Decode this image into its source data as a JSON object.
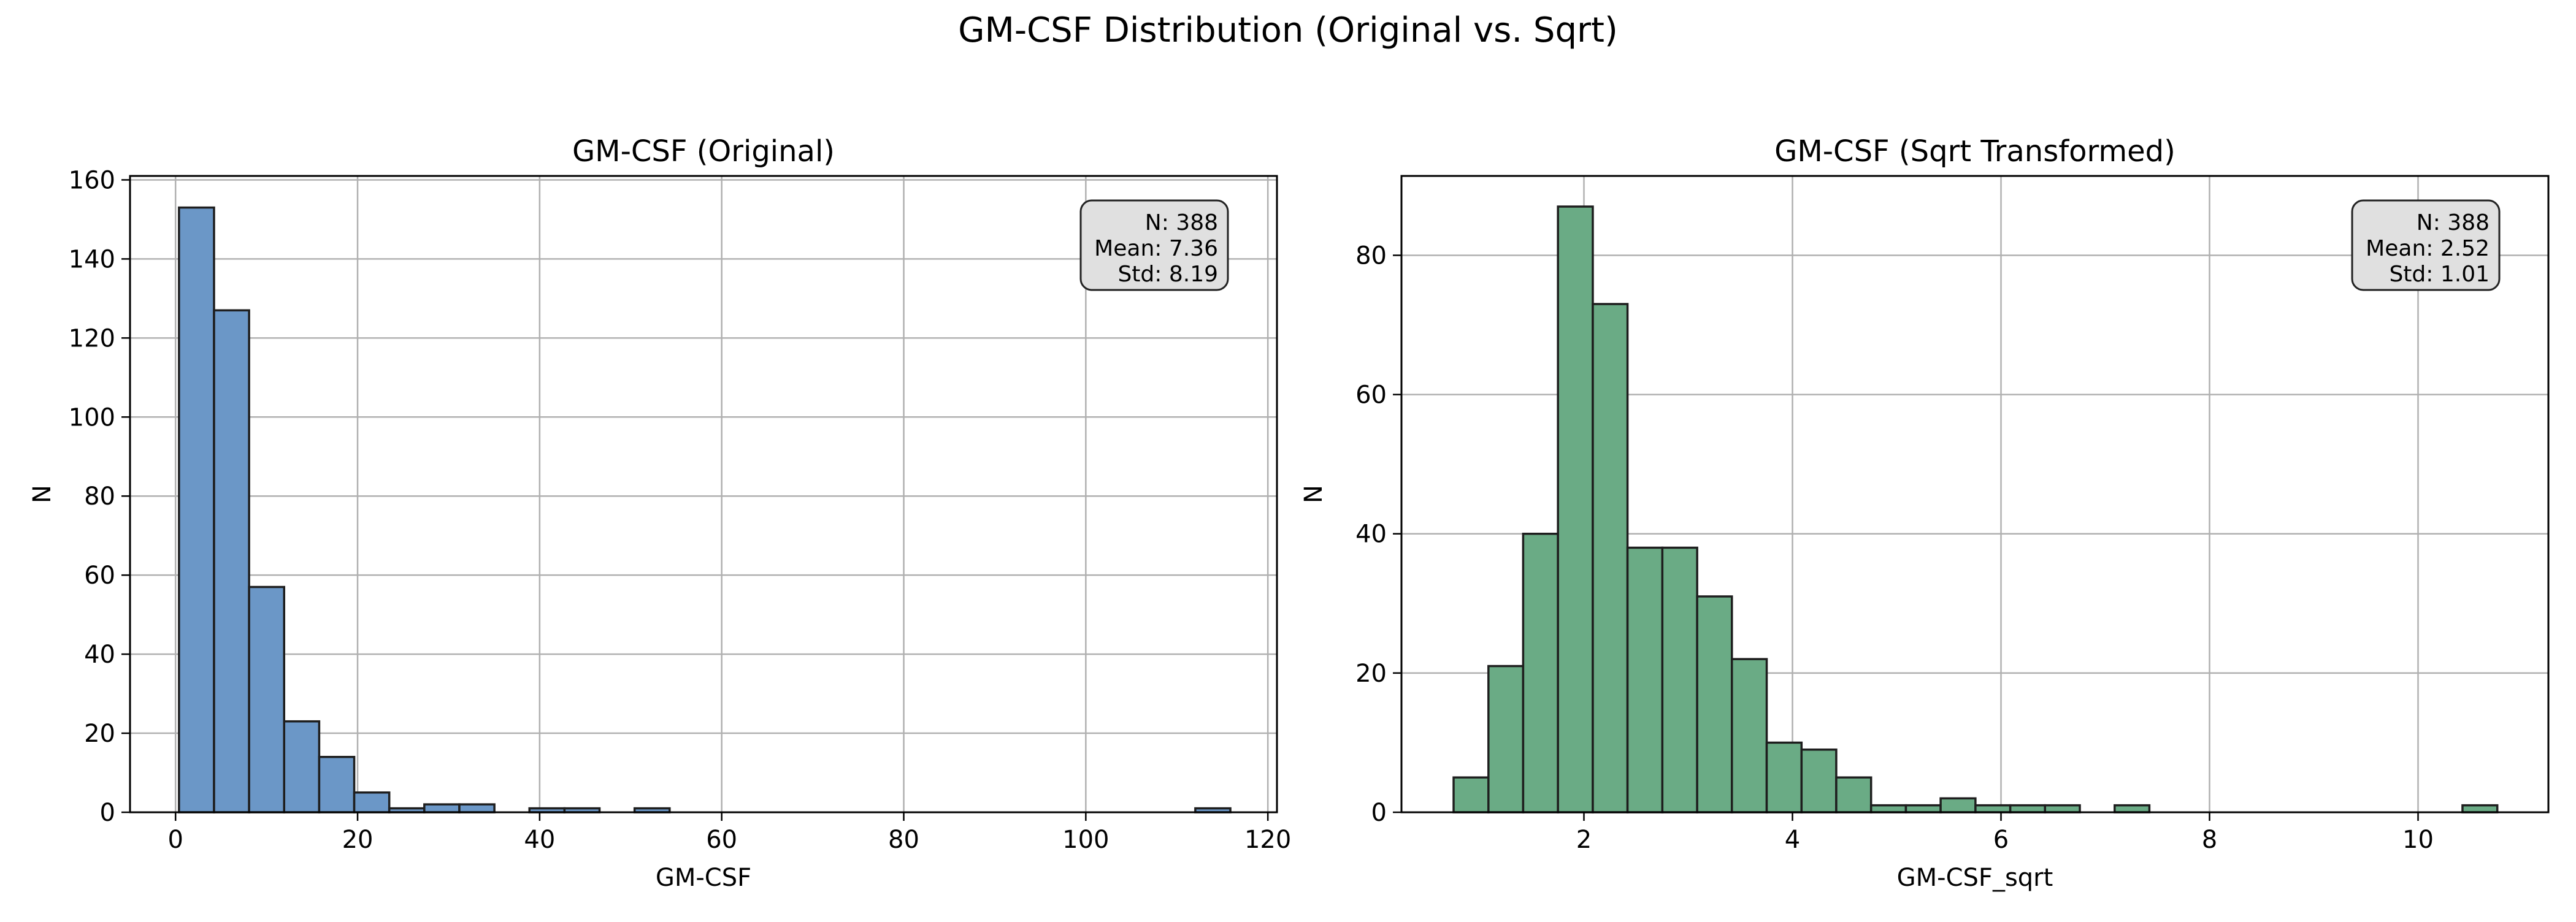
{
  "figure": {
    "title": "GM-CSF Distribution (Original vs. Sqrt)"
  },
  "chart_data": [
    {
      "type": "bar",
      "title": "GM-CSF (Original)",
      "xlabel": "GM-CSF",
      "ylabel": "N",
      "xlim": [
        -5,
        121
      ],
      "ylim": [
        0,
        161
      ],
      "xticks": [
        0,
        20,
        40,
        60,
        80,
        100,
        120
      ],
      "yticks": [
        0,
        20,
        40,
        60,
        80,
        100,
        120,
        140,
        160
      ],
      "grid": true,
      "bar_color": "#6b97c7",
      "bins": [
        [
          0.38,
          4.23,
          153
        ],
        [
          4.23,
          8.08,
          127
        ],
        [
          8.08,
          11.93,
          57
        ],
        [
          11.93,
          15.78,
          23
        ],
        [
          15.78,
          19.63,
          14
        ],
        [
          19.63,
          23.48,
          5
        ],
        [
          23.48,
          27.33,
          1
        ],
        [
          27.33,
          31.18,
          2
        ],
        [
          31.18,
          35.03,
          2
        ],
        [
          35.03,
          38.88,
          0
        ],
        [
          38.88,
          42.73,
          1
        ],
        [
          42.73,
          46.58,
          1
        ],
        [
          46.58,
          50.43,
          0
        ],
        [
          50.43,
          54.28,
          1
        ],
        [
          54.28,
          58.13,
          0
        ],
        [
          58.13,
          61.98,
          0
        ],
        [
          61.98,
          65.83,
          0
        ],
        [
          65.83,
          69.68,
          0
        ],
        [
          69.68,
          73.53,
          0
        ],
        [
          73.53,
          77.38,
          0
        ],
        [
          77.38,
          81.23,
          0
        ],
        [
          81.23,
          85.08,
          0
        ],
        [
          85.08,
          88.93,
          0
        ],
        [
          88.93,
          92.78,
          0
        ],
        [
          92.78,
          96.63,
          0
        ],
        [
          96.63,
          100.48,
          0
        ],
        [
          100.48,
          104.33,
          0
        ],
        [
          104.33,
          108.18,
          0
        ],
        [
          108.18,
          112.03,
          0
        ],
        [
          112.03,
          115.88,
          1
        ]
      ],
      "stats": [
        "N: 388",
        "Mean: 7.36",
        "Std: 8.19"
      ]
    },
    {
      "type": "bar",
      "title": "GM-CSF (Sqrt Transformed)",
      "xlabel": "GM-CSF_sqrt",
      "ylabel": "N",
      "xlim": [
        0.25,
        11.25
      ],
      "ylim": [
        0,
        91.4
      ],
      "xticks": [
        2,
        4,
        6,
        8,
        10
      ],
      "yticks": [
        0,
        20,
        40,
        60,
        80
      ],
      "grid": true,
      "bar_color": "#6aab85",
      "bins": [
        [
          0.75,
          1.084,
          5
        ],
        [
          1.084,
          1.417,
          21
        ],
        [
          1.417,
          1.751,
          40
        ],
        [
          1.751,
          2.085,
          87
        ],
        [
          2.085,
          2.418,
          73
        ],
        [
          2.418,
          2.752,
          38
        ],
        [
          2.752,
          3.086,
          38
        ],
        [
          3.086,
          3.419,
          31
        ],
        [
          3.419,
          3.753,
          22
        ],
        [
          3.753,
          4.087,
          10
        ],
        [
          4.087,
          4.42,
          9
        ],
        [
          4.42,
          4.754,
          5
        ],
        [
          4.754,
          5.088,
          1
        ],
        [
          5.088,
          5.421,
          1
        ],
        [
          5.421,
          5.755,
          2
        ],
        [
          5.755,
          6.089,
          1
        ],
        [
          6.089,
          6.422,
          1
        ],
        [
          6.422,
          6.756,
          1
        ],
        [
          6.756,
          7.09,
          0
        ],
        [
          7.09,
          7.423,
          1
        ],
        [
          7.423,
          7.757,
          0
        ],
        [
          7.757,
          8.091,
          0
        ],
        [
          8.091,
          8.424,
          0
        ],
        [
          8.424,
          8.758,
          0
        ],
        [
          8.758,
          9.092,
          0
        ],
        [
          9.092,
          9.425,
          0
        ],
        [
          9.425,
          9.759,
          0
        ],
        [
          9.759,
          10.093,
          0
        ],
        [
          10.093,
          10.426,
          0
        ],
        [
          10.426,
          10.76,
          1
        ]
      ],
      "stats": [
        "N: 388",
        "Mean: 2.52",
        "Std: 1.01"
      ]
    }
  ]
}
